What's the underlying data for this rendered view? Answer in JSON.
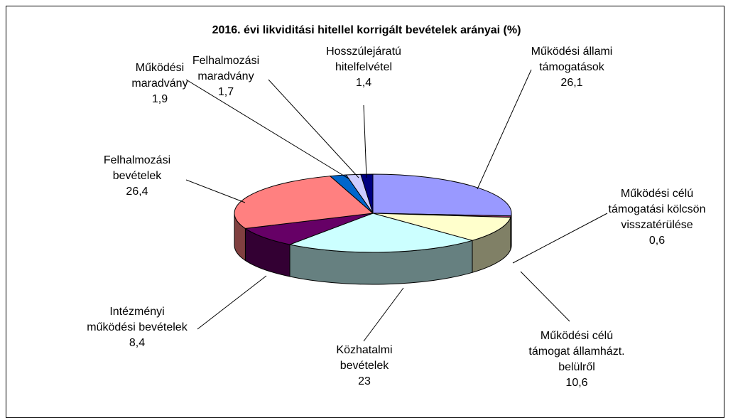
{
  "chart_data": {
    "type": "pie3d",
    "title": "2016. évi likviditási hitellel korrigált bevételek arányai (%)",
    "categories": [
      "Működési állami\ntámogatások",
      "Működési célú\ntámogatási kölcsön\nvisszatérülése",
      "Működési célú\ntámogat államházt.\nbelülről",
      "Közhatalmi\nbevételek",
      "Intézményi\nműködési bevételek",
      "Felhalmozási\nbevételek",
      "Működési\nmaradvány",
      "Felhalmozási\nmaradvány",
      "Hosszúlejáratú\nhitelfelvétel"
    ],
    "values": [
      26.1,
      0.6,
      10.6,
      23,
      8.4,
      26.4,
      1.9,
      1.7,
      1.4
    ],
    "value_labels": [
      "26,1",
      "0,6",
      "10,6",
      "23",
      "8,4",
      "26,4",
      "1,9",
      "1,7",
      "1,4"
    ],
    "colors": [
      "#9999ff",
      "#993366",
      "#ffffcc",
      "#ccffff",
      "#660066",
      "#ff8080",
      "#0066cc",
      "#ccccff",
      "#000080"
    ]
  }
}
